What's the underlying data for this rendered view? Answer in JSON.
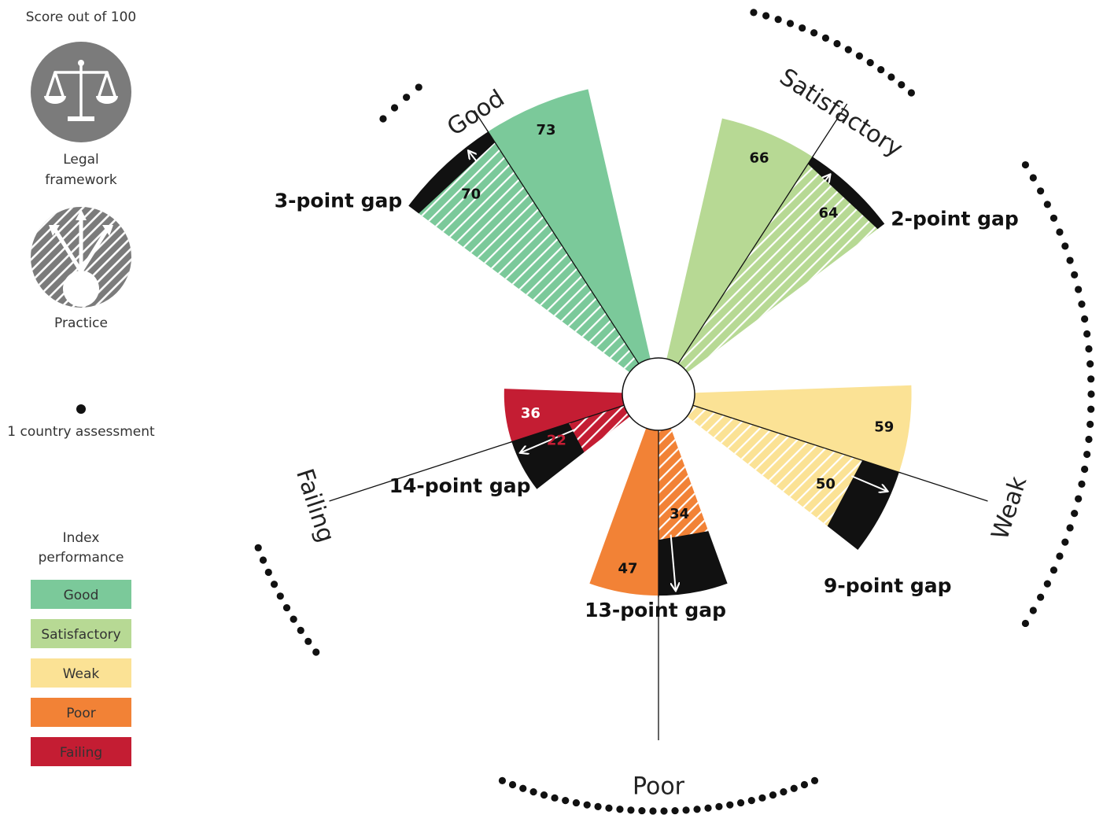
{
  "chart_data": {
    "type": "polar-bar",
    "scale_note": "Score out of 100",
    "categories": [
      {
        "name": "Good",
        "color": "#7bc99a",
        "legal": 73,
        "practice": 70,
        "gap_label": "3-point gap"
      },
      {
        "name": "Satisfactory",
        "color": "#b7d994",
        "legal": 66,
        "practice": 64,
        "gap_label": "2-point gap"
      },
      {
        "name": "Weak",
        "color": "#fbe295",
        "legal": 59,
        "practice": 50,
        "gap_label": "9-point gap"
      },
      {
        "name": "Poor",
        "color": "#f28236",
        "legal": 47,
        "practice": 34,
        "gap_label": "13-point gap"
      },
      {
        "name": "Failing",
        "color": "#c41d33",
        "legal": 36,
        "practice": 22,
        "gap_label": "14-point gap"
      }
    ],
    "dot_counts": {
      "Good": 4,
      "Satisfactory": 15,
      "Weak": 33,
      "Poor": 30,
      "Failing": 10
    }
  },
  "legend": {
    "score_title": "Score out of 100",
    "legal_label_1": "Legal",
    "legal_label_2": "framework",
    "practice_label": "Practice",
    "dot_label": "1 country assessment",
    "index_title_1": "Index",
    "index_title_2": "performance",
    "swatches": [
      {
        "label": "Good",
        "color": "#7bc99a"
      },
      {
        "label": "Satisfactory",
        "color": "#b7d994"
      },
      {
        "label": "Weak",
        "color": "#fbe295"
      },
      {
        "label": "Poor",
        "color": "#f28236"
      },
      {
        "label": "Failing",
        "color": "#c41d33"
      }
    ]
  }
}
